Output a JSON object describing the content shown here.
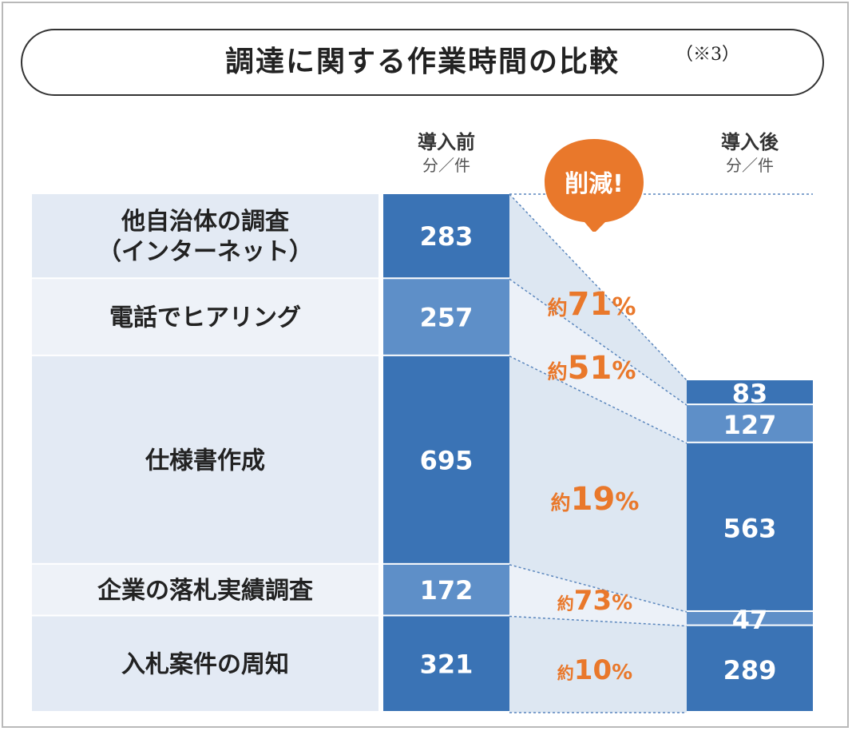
{
  "title": "調達に関する作業時間の比較",
  "title_note": "（※3）",
  "columns": {
    "before": {
      "label": "導入前",
      "unit": "分／件"
    },
    "after": {
      "label": "導入後",
      "unit": "分／件"
    }
  },
  "callout": "削減!",
  "chart_data": {
    "type": "bar",
    "categories": [
      "他自治体の調査\n（インターネット）",
      "電話でヒアリング",
      "仕様書作成",
      "企業の落札実績調査",
      "入札案件の周知"
    ],
    "series": [
      {
        "name": "導入前",
        "values": [
          283,
          257,
          695,
          172,
          321
        ]
      },
      {
        "name": "導入後",
        "values": [
          83,
          127,
          563,
          47,
          289
        ]
      }
    ],
    "reductions": [
      {
        "prefix": "約",
        "value": "71",
        "suffix": "%"
      },
      {
        "prefix": "約",
        "value": "51",
        "suffix": "%"
      },
      {
        "prefix": "約",
        "value": "19",
        "suffix": "%"
      },
      {
        "prefix": "約",
        "value": "73",
        "suffix": "%"
      },
      {
        "prefix": "約",
        "value": "10",
        "suffix": "%"
      }
    ],
    "ylabel": "分／件"
  },
  "colors": {
    "bar_dark": "#3a73b5",
    "bar_light": "#5e8fc8",
    "label_bg_dark": "#e3eaf4",
    "label_bg_light": "#eef2f8",
    "band_dark": "#dde7f2",
    "band_light": "#ecf1f8",
    "accent": "#e9782b"
  }
}
